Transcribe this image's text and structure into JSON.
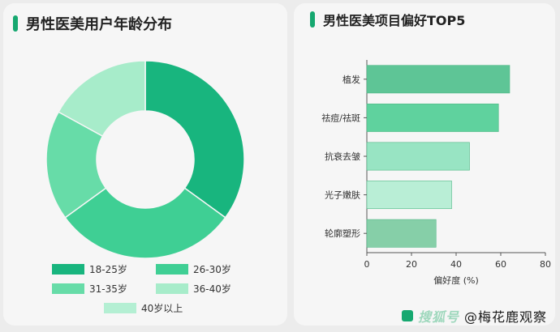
{
  "left_panel": {
    "title": "男性医美用户年龄分布"
  },
  "right_panel": {
    "title": "男性医美项目偏好TOP5"
  },
  "watermark": {
    "brand": "搜狐号",
    "handle": "@梅花鹿观察"
  },
  "colors": {
    "accent": "#16a870",
    "bar_0": "#5ec596",
    "bar_1": "#5fd29e",
    "bar_2": "#98e4c3",
    "bar_3": "#b9eed6",
    "bar_4": "#86cfa8"
  },
  "chart_data": [
    {
      "type": "pie",
      "donut": true,
      "title": "男性医美用户年龄分布",
      "legend_position": "bottom",
      "categories": [
        "18-25岁",
        "26-30岁",
        "31-35岁",
        "36-40岁",
        "40岁以上"
      ],
      "values": [
        35,
        30,
        18,
        17,
        0
      ],
      "colors": [
        "#18b57e",
        "#3fcf94",
        "#67dca8",
        "#a7ecca",
        "#b4efd3"
      ]
    },
    {
      "type": "bar",
      "orientation": "horizontal",
      "title": "男性医美项目偏好TOP5",
      "categories": [
        "植发",
        "祛痘/祛斑",
        "抗衰去皱",
        "光子嫩肤",
        "轮廓塑形"
      ],
      "values": [
        64,
        59,
        46,
        38,
        31
      ],
      "xlabel": "偏好度 (%)",
      "xlim": [
        0,
        80
      ],
      "xticks": [
        "0",
        "20",
        "40",
        "60",
        "80"
      ],
      "grid": false
    }
  ]
}
